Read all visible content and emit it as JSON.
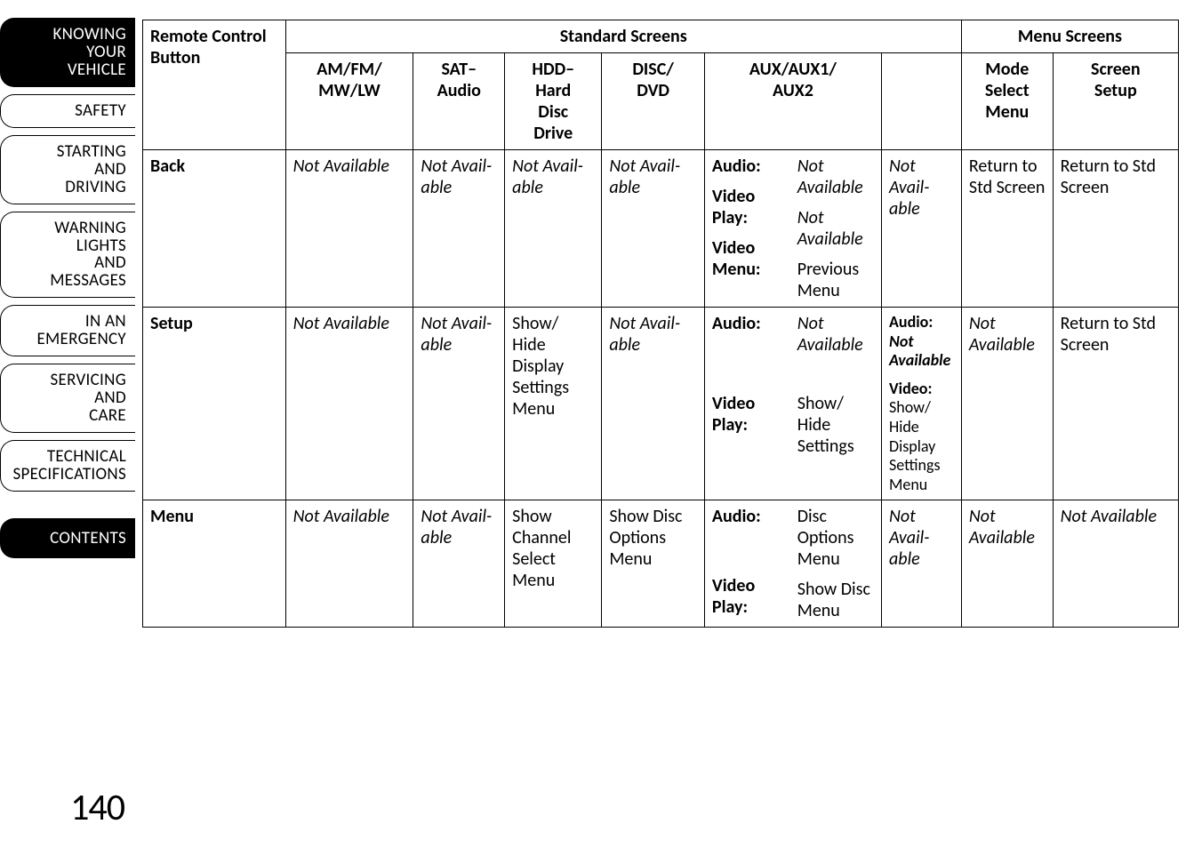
{
  "colors": {
    "background": "#ffffff",
    "text": "#000000",
    "tab_active_bg": "#000000",
    "tab_active_fg": "#ffffff",
    "border": "#000000"
  },
  "typography": {
    "body_fontsize": 20,
    "sidebar_fontsize": 19,
    "page_num_fontsize": 42,
    "font_family": "Gill Sans"
  },
  "sidebar": {
    "tabs": [
      {
        "lines": [
          "KNOWING",
          "YOUR",
          "VEHICLE"
        ],
        "active": true
      },
      {
        "lines": [
          "SAFETY"
        ],
        "active": false
      },
      {
        "lines": [
          "STARTING",
          "AND",
          "DRIVING"
        ],
        "active": false
      },
      {
        "lines": [
          "WARNING",
          "LIGHTS",
          "AND",
          "MESSAGES"
        ],
        "active": false
      },
      {
        "lines": [
          "IN AN",
          "EMERGENCY"
        ],
        "active": false
      },
      {
        "lines": [
          "SERVICING",
          "AND",
          "CARE"
        ],
        "active": false
      },
      {
        "lines": [
          "TECHNICAL",
          "SPECIFICATIONS"
        ],
        "active": false
      }
    ],
    "contents_label": "CONTENTS",
    "page_number": "140"
  },
  "table": {
    "type": "table",
    "header": {
      "remote_label": "Remote Con­trol Button",
      "group_standard": "Standard Screens",
      "group_menu": "Menu Screens",
      "cols": {
        "amfm": "AM/FM/\nMW/LW",
        "sat": "SAT–\nAudio",
        "hdd": "HDD–\nHard\nDisc\nDrive",
        "disc": "DISC/\nDVD",
        "aux": "AUX/AUX1/\nAUX2",
        "blank": "",
        "mode": "Mode\nSelect\nMenu",
        "screen": "Screen\nSetup"
      }
    },
    "rows": [
      {
        "name": "Back",
        "amfm": "Not Available",
        "sat": "Not Avail­able",
        "hdd": "Not Avail­able",
        "disc": "Not Avail­able",
        "aux_blocks": [
          {
            "label": "Audio:",
            "value": "Not Available",
            "italic": true
          },
          {
            "label": "Video Play:",
            "value": "Not Available",
            "italic": true
          },
          {
            "label": "Video Menu:",
            "value": "Previous Menu",
            "italic": false
          }
        ],
        "col7": "Not Avail­able",
        "col7_italic": true,
        "mode": "Return to Std Screen",
        "screen": "Return to Std Screen"
      },
      {
        "name": "Setup",
        "amfm": "Not Available",
        "sat": "Not Avail­able",
        "hdd": "Show/\nHide Display Settings Menu",
        "disc": "Not Avail­able",
        "aux_blocks": [
          {
            "label": "Audio:",
            "value": "Not Available",
            "italic": true
          },
          {
            "label": "Video Play:",
            "value": "Show/\nHide Settings",
            "italic": false
          }
        ],
        "col7_blocks": [
          {
            "label": "Audio:",
            "value": "Not Avail­able",
            "italic": true,
            "bolditalic": true
          },
          {
            "label": "Video:",
            "value": "Show/\nHide Display Settings Menu",
            "italic": false
          }
        ],
        "mode": "Not Available",
        "mode_italic": true,
        "screen": "Return to Std Screen"
      },
      {
        "name": "Menu",
        "amfm": "Not Available",
        "sat": "Not Avail­able",
        "hdd": "Show Channel Select Menu",
        "disc": "Show Disc Options Menu",
        "aux_blocks": [
          {
            "label": "Audio:",
            "value": "Disc Options Menu",
            "italic": false
          },
          {
            "label": "Video Play:",
            "value": "Show Disc Menu",
            "italic": false
          }
        ],
        "col7": "Not Avail­able",
        "col7_italic": true,
        "mode": "Not Available",
        "mode_italic": true,
        "screen": "Not Available",
        "screen_italic": true
      }
    ]
  }
}
